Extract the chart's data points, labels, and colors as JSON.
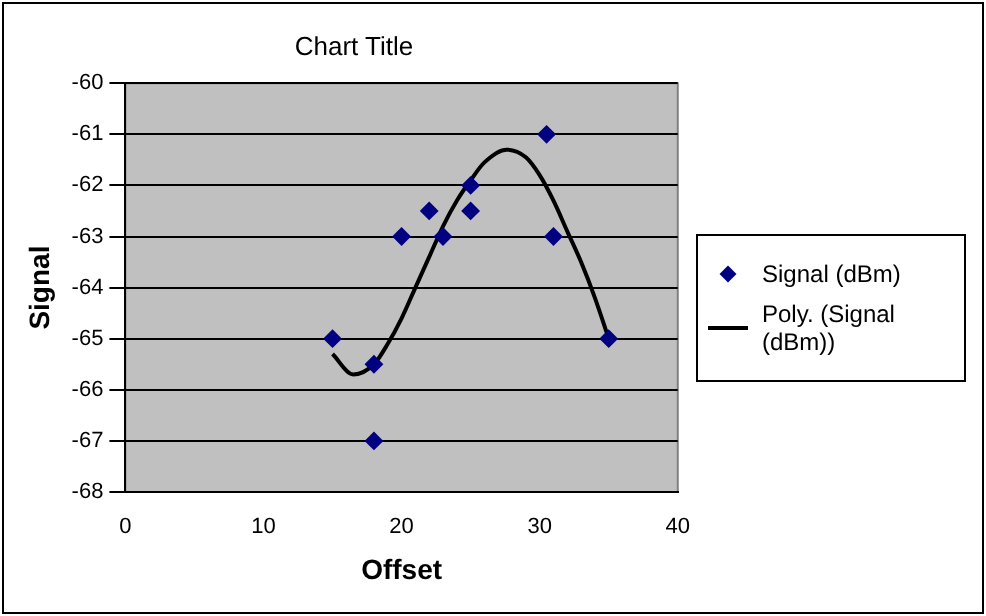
{
  "chart_data": {
    "type": "scatter",
    "title": "Chart Title",
    "xlabel": "Offset",
    "ylabel": "Signal",
    "xlim": [
      0,
      40
    ],
    "xticks": [
      0,
      10,
      20,
      30,
      40
    ],
    "ylim": [
      -68,
      -60
    ],
    "yticks": [
      -68,
      -67,
      -66,
      -65,
      -64,
      -63,
      -62,
      -61,
      -60
    ],
    "grid": "y",
    "legend": "right",
    "series": [
      {
        "name": "Signal (dBm)",
        "type": "scatter",
        "marker": "diamond",
        "color": "#000080",
        "x": [
          15,
          18,
          18,
          20,
          22,
          23,
          25,
          25,
          30.5,
          31,
          35
        ],
        "values": [
          -65,
          -65.5,
          -67,
          -63,
          -62.5,
          -63,
          -62,
          -62.5,
          -61,
          -63,
          -65
        ]
      },
      {
        "name": "Poly. (Signal (dBm))",
        "type": "line",
        "marker": "none",
        "line_style": "solid",
        "color": "#000000",
        "x": [
          15,
          16.5,
          18,
          19,
          20,
          21,
          22,
          23,
          24,
          25,
          26,
          27.6,
          29,
          30,
          31,
          32,
          33,
          34,
          35
        ],
        "values": [
          -65.3,
          -65.7,
          -65.5,
          -65.1,
          -64.6,
          -64,
          -63.4,
          -62.8,
          -62.3,
          -61.9,
          -61.55,
          -61.3,
          -61.45,
          -61.8,
          -62.3,
          -62.9,
          -63.5,
          -64.2,
          -65
        ]
      }
    ]
  }
}
